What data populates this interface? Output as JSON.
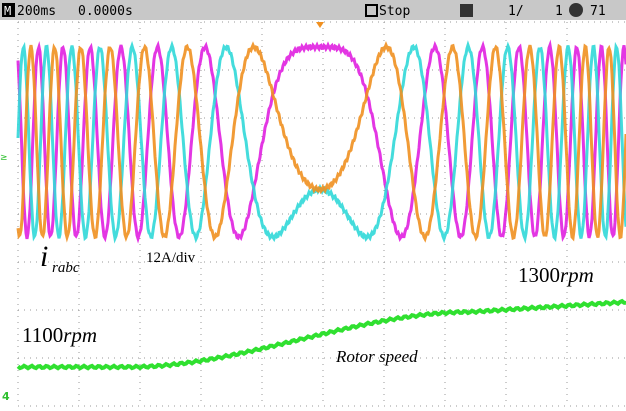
{
  "header": {
    "timebase": "200ms",
    "position": "0.0000s",
    "status": "Stop",
    "page": "1/",
    "count": "1",
    "value": "71"
  },
  "annotations": {
    "current_symbol": "i",
    "current_subscript": "rabc",
    "scale": "12A/div",
    "speed_high": "1300",
    "speed_low": "1100",
    "speed_unit": "rpm",
    "speed_label": "Rotor speed"
  },
  "markers": {
    "channel": "4"
  }
}
